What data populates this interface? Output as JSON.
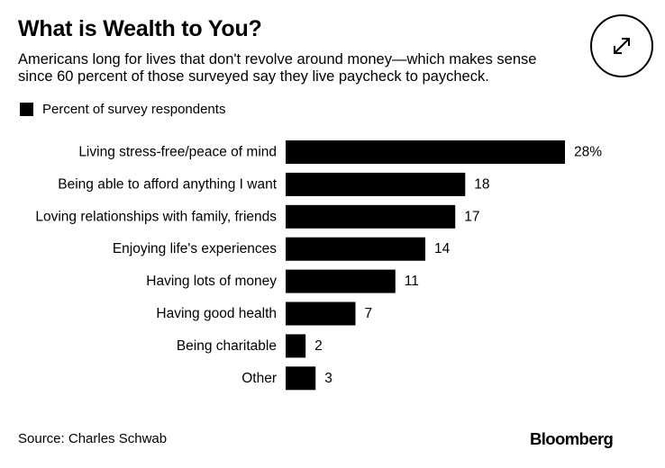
{
  "title": "What is Wealth to You?",
  "subtitle_line1": "Americans long for lives that don't revolve around money—which makes sense",
  "subtitle_line2": "since 60 percent of those surveyed say they live paycheck to paycheck.",
  "legend_label": "Percent of survey respondents",
  "source": "Source: Charles Schwab",
  "logo": "Bloomberg",
  "expand_icon": "expand-arrows-icon",
  "chart_data": {
    "type": "bar",
    "orientation": "horizontal",
    "categories": [
      "Living stress-free/peace of mind",
      "Being able to afford anything I want",
      "Loving relationships with family, friends",
      "Enjoying life's experiences",
      "Having lots of money",
      "Having good health",
      "Being charitable",
      "Other"
    ],
    "values": [
      28,
      18,
      17,
      14,
      11,
      7,
      2,
      3
    ],
    "value_labels": [
      "28%",
      "18",
      "17",
      "14",
      "11",
      "7",
      "2",
      "3"
    ],
    "series": [
      {
        "name": "Percent of survey respondents",
        "values": [
          28,
          18,
          17,
          14,
          11,
          7,
          2,
          3
        ]
      }
    ],
    "bar_color": "#000000",
    "xlim": [
      0,
      28
    ],
    "grid": false,
    "legend_position": "top-left"
  }
}
